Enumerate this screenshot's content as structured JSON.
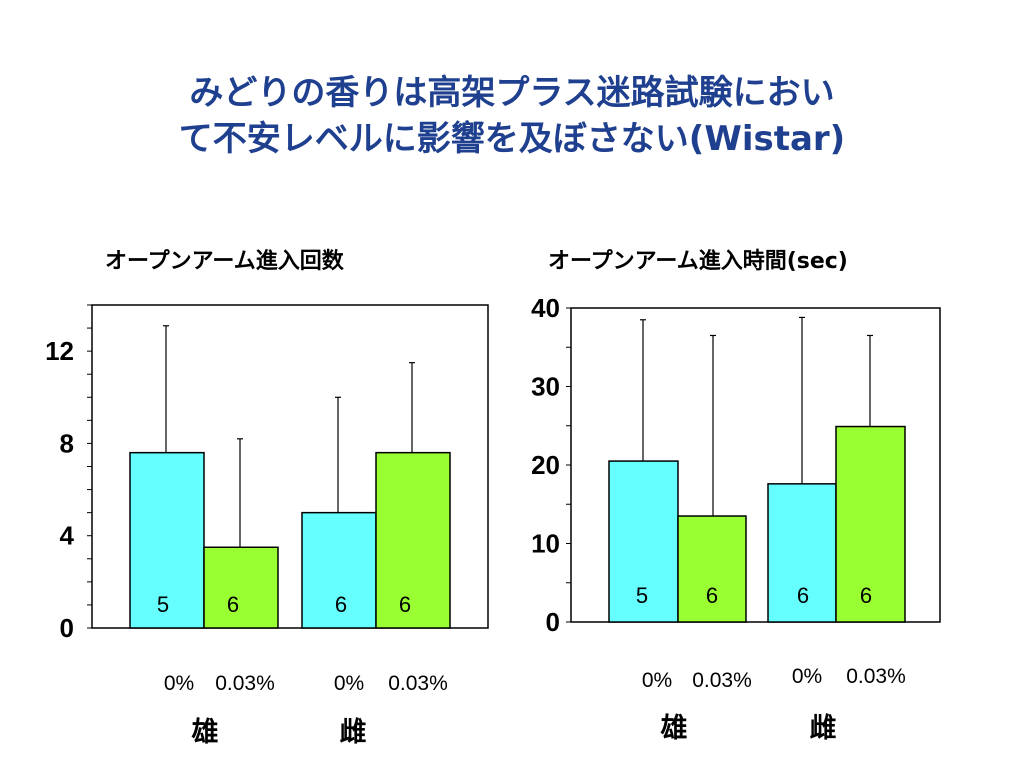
{
  "title": {
    "line1": "みどりの香りは高架プラス迷路試験におい",
    "line2": "て不安レベルに影響を及ぼさない(Wistar)"
  },
  "colors": {
    "control": "#66ffff",
    "treated": "#99ff33",
    "title": "#1f3f8f"
  },
  "chart_data": [
    {
      "type": "bar",
      "title": "オープンアーム進入回数",
      "ylim": [
        0,
        14
      ],
      "yticks": [
        "0",
        "4",
        "8",
        "12"
      ],
      "grid": false,
      "categories": [
        "0%",
        "0.03%",
        "0%",
        "0.03%"
      ],
      "groups": [
        "雄",
        "雌"
      ],
      "values": [
        7.6,
        3.5,
        5.0,
        7.6
      ],
      "error_upper": [
        13.1,
        8.2,
        10.0,
        11.5
      ],
      "n_labels": [
        "5",
        "6",
        "6",
        "6"
      ]
    },
    {
      "type": "bar",
      "title": "オープンアーム進入時間(sec)",
      "ylim": [
        0,
        40
      ],
      "yticks": [
        "0",
        "10",
        "20",
        "30",
        "40"
      ],
      "grid": false,
      "categories": [
        "0%",
        "0.03%",
        "0%",
        "0.03%"
      ],
      "groups": [
        "雄",
        "雌"
      ],
      "values": [
        20.5,
        13.5,
        17.6,
        24.9
      ],
      "error_upper": [
        38.5,
        36.5,
        38.8,
        36.5
      ],
      "n_labels": [
        "5",
        "6",
        "6",
        "6"
      ]
    }
  ]
}
